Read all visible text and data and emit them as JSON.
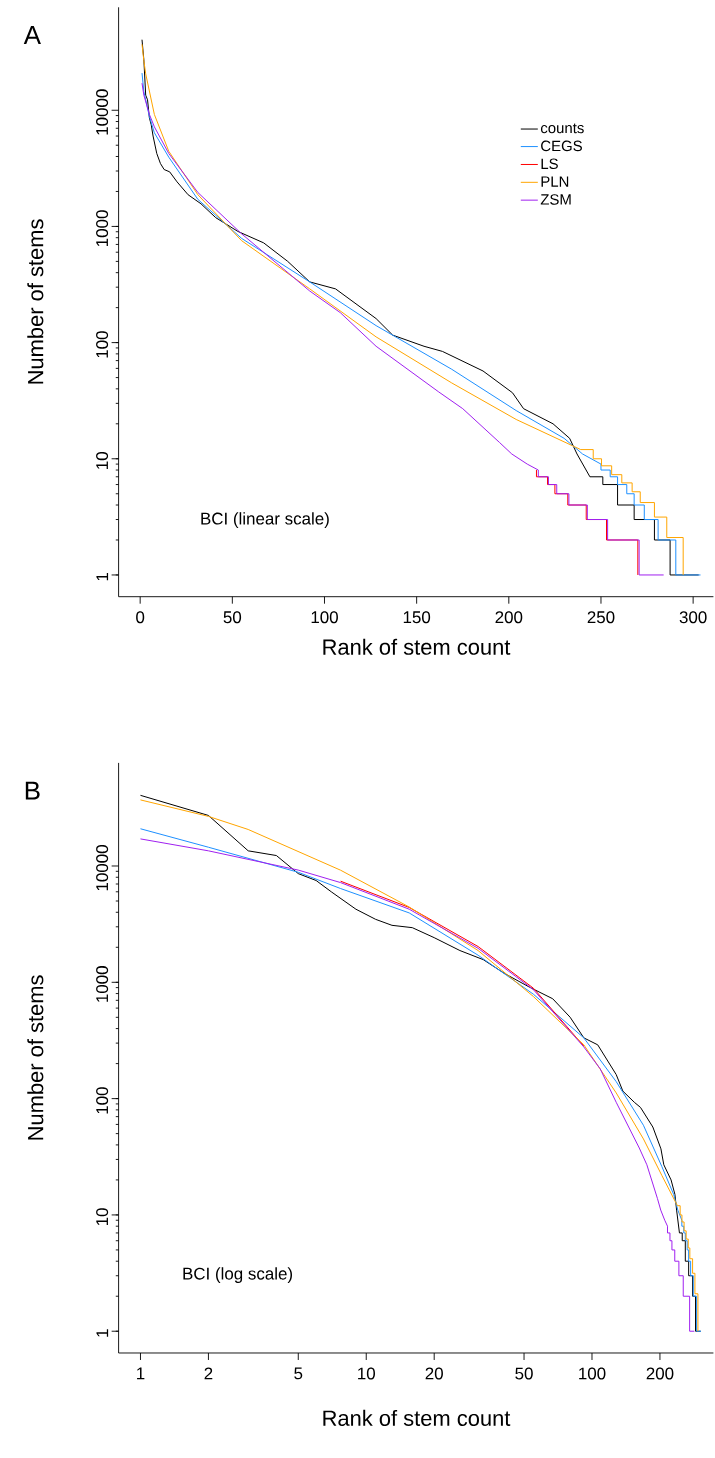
{
  "chart_data": [
    {
      "type": "line",
      "title": "A",
      "xlabel": "Rank of stem count",
      "ylabel": "Number of stems",
      "annotations": [
        "BCI (linear scale)"
      ],
      "log": "y",
      "legend": "top right",
      "xlim": [
        -11.7,
        311
      ],
      "ylim": [
        0.65,
        77000
      ],
      "xticks": [
        0,
        50,
        100,
        150,
        200,
        250,
        300
      ],
      "yticks": [
        1,
        10,
        100,
        1000,
        10000
      ],
      "series": [
        {
          "name": "counts",
          "color": "#000000",
          "x": [
            1,
            2,
            3,
            4,
            5,
            6,
            7,
            9,
            11,
            13,
            16,
            20,
            26,
            33,
            41,
            53,
            67,
            80,
            92,
            106,
            128,
            137,
            154,
            164,
            186,
            202,
            208,
            224,
            233,
            237,
            244,
            251,
            251,
            259,
            259,
            268,
            268,
            279,
            279,
            287.5,
            287.5,
            303
          ],
          "values": [
            40500,
            27200,
            13500,
            12300,
            8600,
            7500,
            6000,
            4250,
            3480,
            3090,
            2950,
            2420,
            1875,
            1566,
            1190,
            906,
            722,
            501,
            333,
            290,
            161,
            116,
            93,
            84,
            57,
            37,
            27,
            20,
            15,
            11,
            7,
            7,
            6,
            6,
            4,
            4,
            3,
            3,
            2,
            2,
            1,
            1
          ]
        },
        {
          "name": "CEGS",
          "color": "#1e90ff",
          "x": [
            1,
            2,
            5,
            7.7,
            15.5,
            31.3,
            55,
            92,
            128,
            169,
            204,
            230,
            240,
            250,
            250,
            255,
            255,
            259,
            259,
            264,
            264,
            268,
            268,
            273.5,
            273.5,
            281,
            281,
            290.6,
            290.6,
            304
          ],
          "values": [
            20900,
            14500,
            8830,
            6400,
            3950,
            1710,
            790,
            333,
            140,
            59,
            26,
            15,
            11,
            9,
            8,
            8,
            7,
            7,
            6,
            6,
            5,
            5,
            4,
            4,
            3,
            3,
            2,
            2,
            1,
            1
          ]
        },
        {
          "name": "LS",
          "color": "#ff0000",
          "x": [
            215,
            215,
            221,
            221,
            225,
            225,
            232,
            232,
            242,
            242,
            253,
            253,
            270,
            270
          ],
          "values": [
            8,
            7,
            7,
            6,
            6,
            5,
            5,
            4,
            4,
            3,
            3,
            2,
            2,
            1
          ]
        },
        {
          "name": "PLN",
          "color": "#ffa500",
          "x": [
            1,
            2,
            3,
            7.7,
            15.5,
            31.3,
            55,
            92,
            128,
            169,
            204,
            239,
            245.8,
            245.8,
            250.3,
            250.3,
            255.8,
            255.8,
            261.3,
            261.3,
            266.9,
            266.9,
            271.3,
            271.3,
            279,
            279,
            285.7,
            285.7,
            294.6,
            294.6
          ],
          "values": [
            37000,
            26700,
            20600,
            9200,
            4440,
            1875,
            755,
            290,
            112,
            45,
            21.8,
            12,
            12,
            10,
            10,
            8.7,
            8.7,
            7.3,
            7.3,
            6.2,
            6.2,
            5.2,
            5.2,
            4.2,
            4.2,
            3.15,
            3.15,
            2.1,
            2.1,
            1
          ]
        },
        {
          "name": "ZSM",
          "color": "#a020f0",
          "x": [
            1,
            2,
            5,
            7.7,
            15.5,
            31.3,
            55,
            92,
            108.6,
            128,
            162,
            175,
            195,
            201.6,
            210,
            216,
            216,
            221.5,
            221.5,
            226,
            226,
            232.6,
            232.6,
            242.6,
            242.6,
            253.6,
            253.6,
            270.7,
            270.7,
            284
          ],
          "values": [
            17100,
            13500,
            9220,
            7200,
            4250,
            1960,
            865,
            278,
            181,
            93,
            37.6,
            27,
            13.8,
            11,
            9,
            8,
            7,
            7,
            6,
            6,
            5,
            5,
            4,
            4,
            3,
            3,
            2,
            2,
            1,
            1
          ]
        }
      ]
    },
    {
      "type": "line",
      "title": "B",
      "xlabel": "Rank of stem count",
      "ylabel": "Number of stems",
      "annotations": [
        "BCI (log scale)"
      ],
      "log": "xy",
      "xlim": [
        0.8,
        345
      ],
      "ylim": [
        0.65,
        77000
      ],
      "xticks": [
        1,
        2,
        5,
        10,
        20,
        50,
        100,
        200
      ],
      "yticks": [
        1,
        10,
        100,
        1000,
        10000
      ],
      "series": [
        {
          "color": "#000000",
          "x": [
            1,
            2,
            3,
            4,
            5,
            6,
            7,
            9,
            11,
            13,
            16,
            20,
            26,
            33,
            41,
            53,
            67,
            80,
            92,
            106,
            128,
            137,
            154,
            164,
            186,
            202,
            208,
            224,
            233,
            237,
            244,
            251,
            251,
            259,
            259,
            268,
            268,
            279,
            279,
            287.5,
            287.5,
            303
          ],
          "values": [
            40500,
            27200,
            13500,
            12300,
            8600,
            7500,
            6000,
            4250,
            3480,
            3090,
            2950,
            2420,
            1875,
            1566,
            1190,
            906,
            722,
            501,
            333,
            290,
            161,
            116,
            93,
            84,
            57,
            37,
            27,
            20,
            15,
            11,
            7,
            7,
            6,
            6,
            4,
            4,
            3,
            3,
            2,
            2,
            1,
            1
          ]
        },
        {
          "color": "#1e90ff",
          "x": [
            1,
            2,
            5,
            7.7,
            15.5,
            31.3,
            55,
            92,
            128,
            169,
            204,
            230,
            240,
            250,
            250,
            255,
            255,
            259,
            259,
            264,
            264,
            268,
            268,
            273.5,
            273.5,
            281,
            281,
            290.6,
            290.6,
            304
          ],
          "values": [
            20900,
            14500,
            8830,
            6400,
            3950,
            1710,
            790,
            333,
            140,
            59,
            26,
            15,
            11,
            9,
            8,
            8,
            7,
            7,
            6,
            6,
            5,
            5,
            4,
            4,
            3,
            3,
            2,
            2,
            1,
            1
          ]
        },
        {
          "color": "#ff0000",
          "x": [
            7.7,
            15.5,
            31.3,
            55,
            92
          ],
          "values": [
            7400,
            4400,
            2030,
            890,
            283
          ]
        },
        {
          "color": "#ffa500",
          "x": [
            1,
            2,
            3,
            7.7,
            15.5,
            31.3,
            55,
            92,
            128,
            169,
            204,
            239,
            245.8,
            245.8,
            250.3,
            250.3,
            255.8,
            255.8,
            261.3,
            261.3,
            266.9,
            266.9,
            271.3,
            271.3,
            279,
            279,
            285.7,
            285.7,
            294.6,
            294.6
          ],
          "values": [
            37000,
            26700,
            20600,
            9200,
            4440,
            1875,
            755,
            290,
            112,
            45,
            21.8,
            12,
            12,
            10,
            10,
            8.7,
            8.7,
            7.3,
            7.3,
            6.2,
            6.2,
            5.2,
            5.2,
            4.2,
            4.2,
            3.15,
            3.15,
            2.1,
            2.1,
            1
          ]
        },
        {
          "color": "#a020f0",
          "x": [
            1,
            2,
            5,
            7.7,
            15.5,
            31.3,
            55,
            92,
            108.6,
            128,
            162,
            175,
            195,
            201.6,
            210,
            216,
            216,
            221.5,
            221.5,
            226,
            226,
            232.6,
            232.6,
            242.6,
            242.6,
            253.6,
            253.6,
            270.7,
            270.7,
            284
          ],
          "values": [
            17100,
            13500,
            9220,
            7200,
            4250,
            1960,
            865,
            278,
            181,
            93,
            37.6,
            27,
            13.8,
            11,
            9,
            8,
            7,
            7,
            6,
            6,
            5,
            5,
            4,
            4,
            3,
            3,
            2,
            2,
            1,
            1
          ]
        }
      ]
    }
  ]
}
